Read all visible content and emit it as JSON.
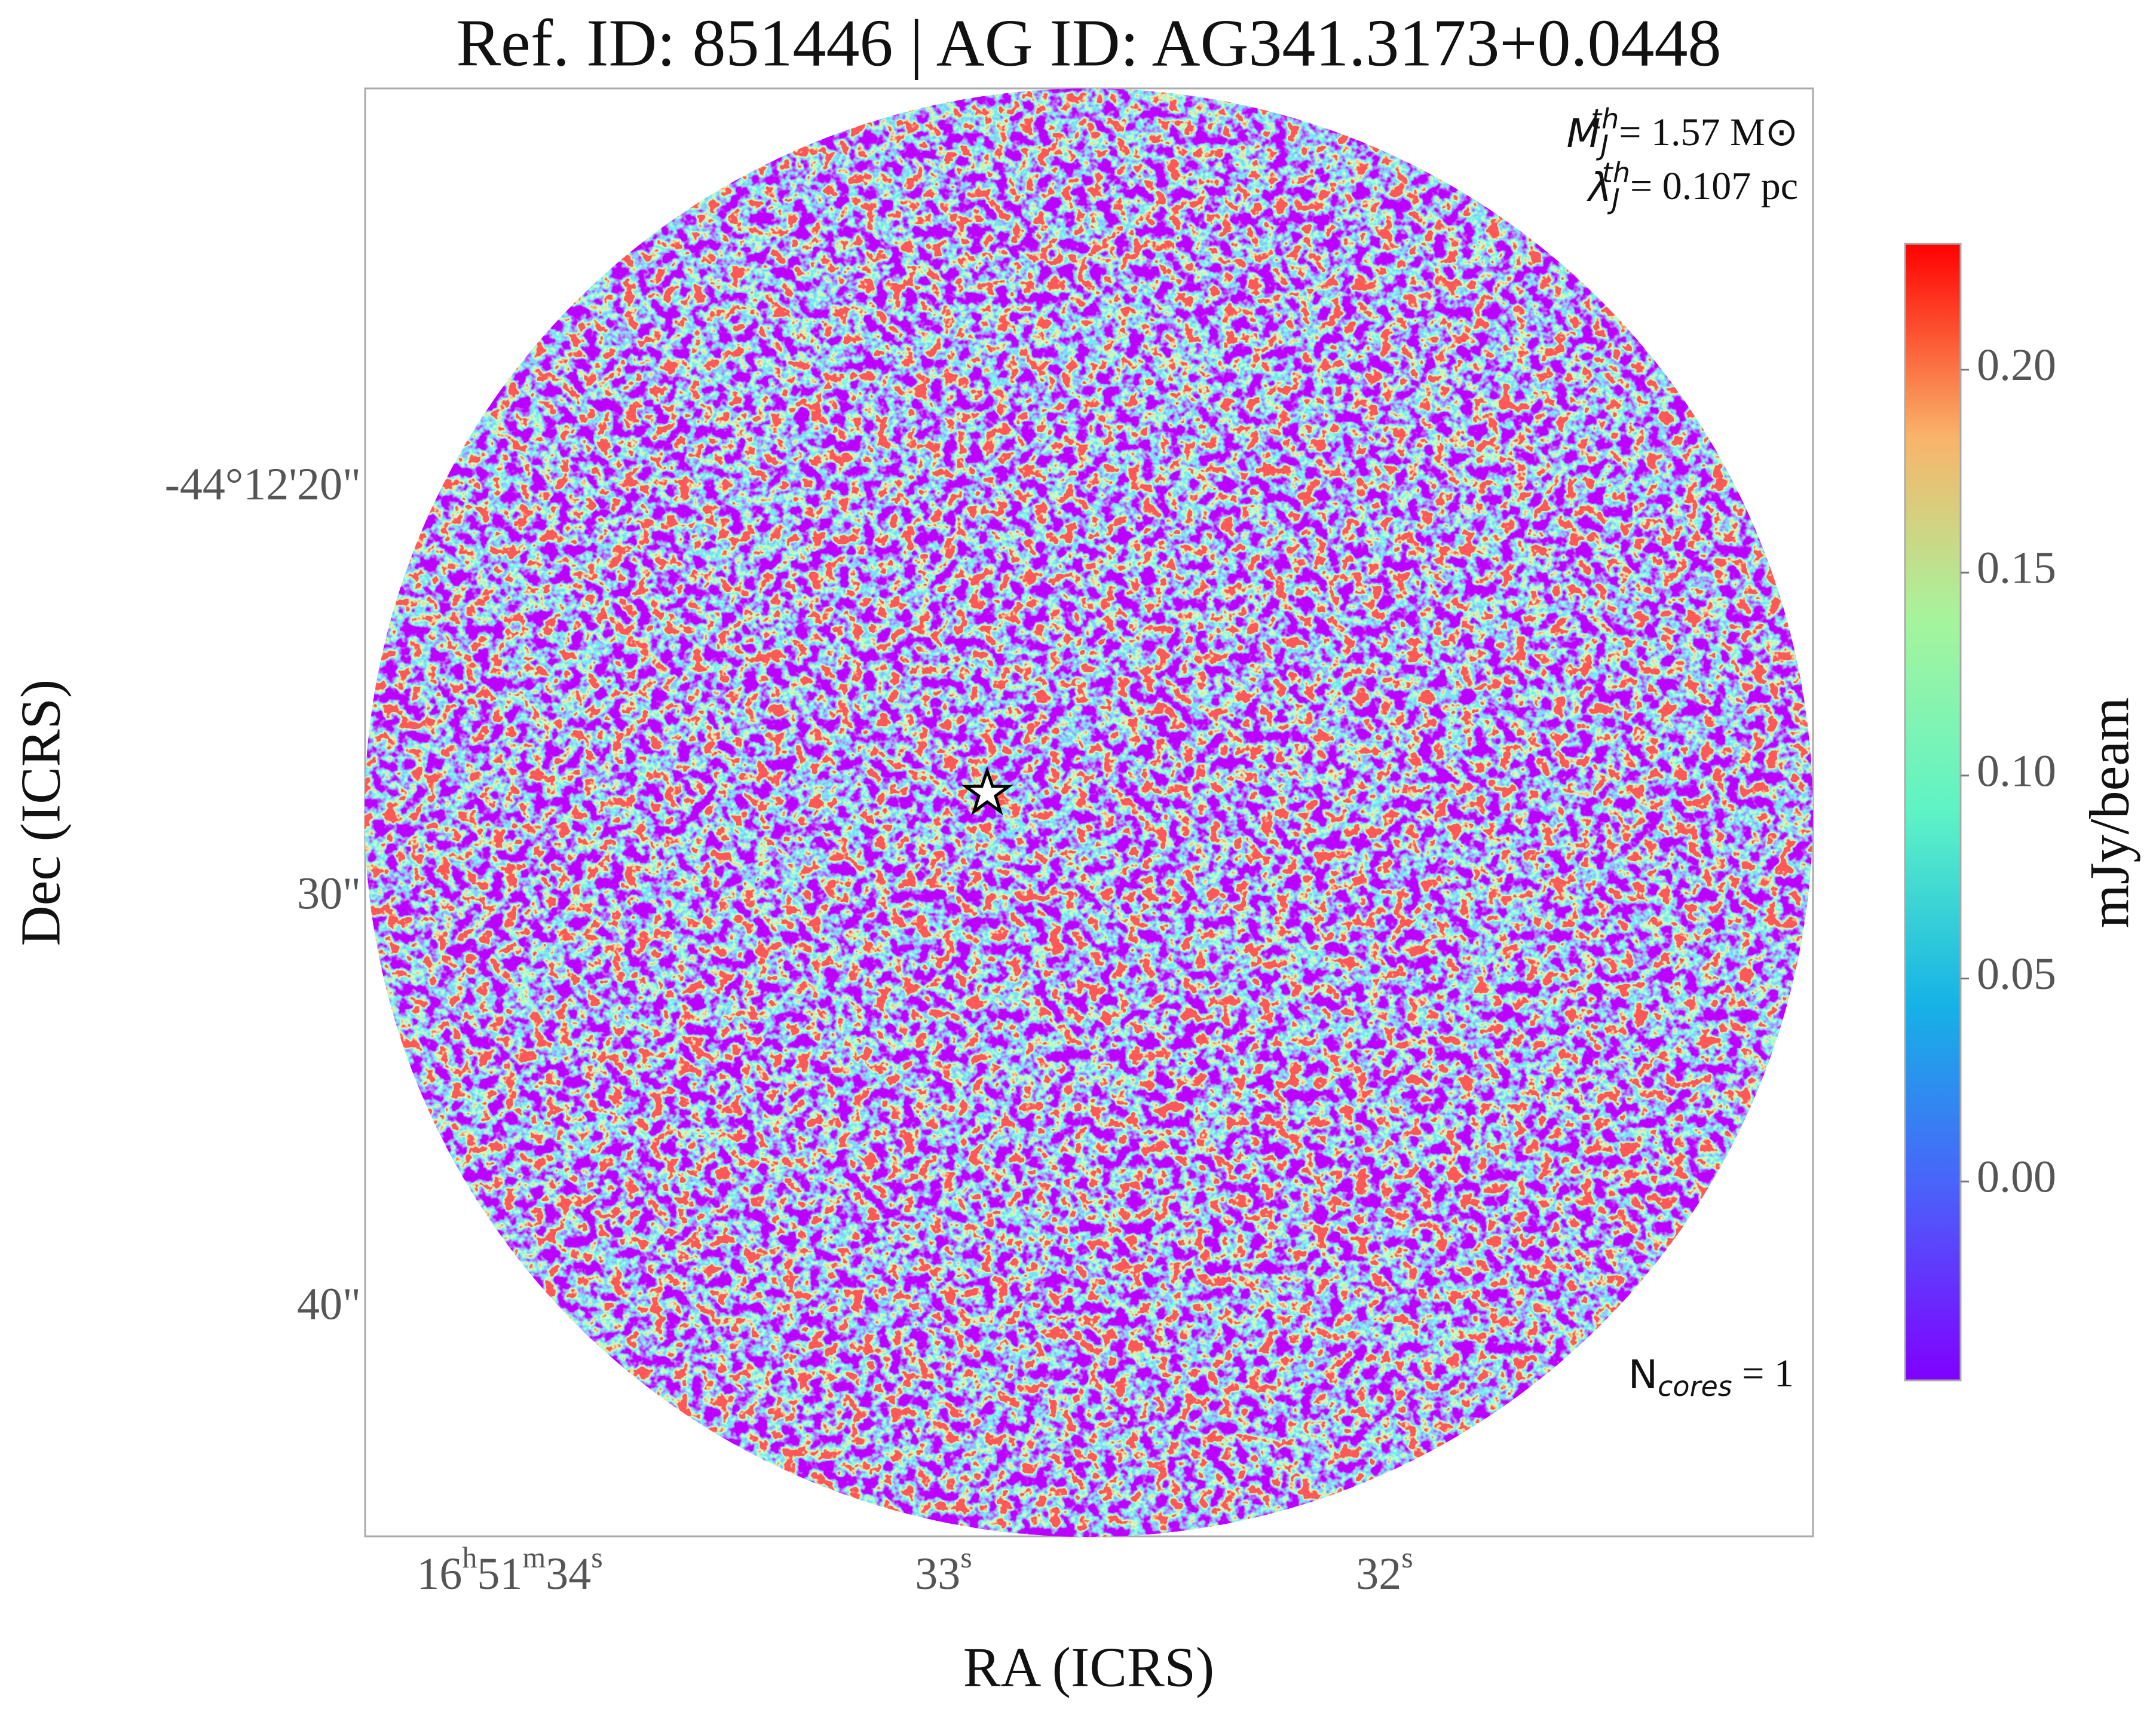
{
  "chart_data": {
    "type": "image",
    "title": "Ref. ID: 851446 | AG ID: AG341.3173+0.0448",
    "xlabel": "RA (ICRS)",
    "ylabel": "Dec (ICRS)",
    "xticks": [
      [
        {
          "text": "16",
          "sup": "h"
        },
        {
          "text": "51",
          "sup": "m"
        },
        {
          "text": "34",
          "sup": "s"
        }
      ],
      [
        {
          "text": "33",
          "sup": "s"
        }
      ],
      [
        {
          "text": "32",
          "sup": "s"
        }
      ]
    ],
    "yticks": [
      "-44°12'20\"",
      "30\"",
      "40\""
    ],
    "colorbar": {
      "label": "mJy/beam",
      "lim": [
        -0.049,
        0.231
      ],
      "ticks": [
        {
          "value": 0,
          "label": "0.00"
        },
        {
          "value": 0.05,
          "label": "0.05"
        },
        {
          "value": 0.1,
          "label": "0.10"
        },
        {
          "value": 0.15,
          "label": "0.15"
        },
        {
          "value": 0.2,
          "label": "0.20"
        }
      ]
    },
    "annotations": {
      "mass": {
        "symbol": "M",
        "sub": "J",
        "sup": "th",
        "text": "= 1.57 M⊙"
      },
      "length": {
        "symbol": "λ",
        "sub": "J",
        "sup": "th",
        "text": "= 0.107 pc"
      },
      "cores": {
        "symbol": "N",
        "sub": "cores",
        "text": " = 1"
      }
    }
  }
}
